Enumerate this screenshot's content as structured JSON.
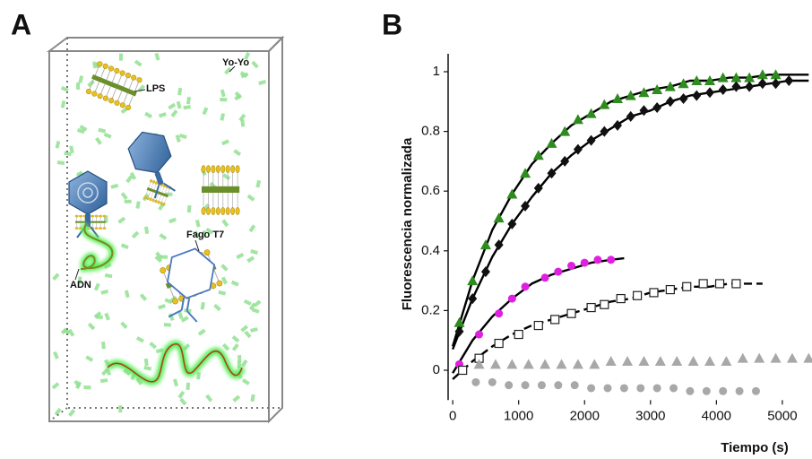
{
  "illustration": {
    "label": "A",
    "labels": [
      "Yo-Yo",
      "LPS",
      "Fago T7",
      "ADN"
    ]
  },
  "chart_data": {
    "type": "scatter",
    "panel_label": "B",
    "xlabel": "Tiempo (s)",
    "ylabel": "Fluorescencia normalizada",
    "xlim": [
      -70,
      5450
    ],
    "ylim": [
      -0.1,
      1.06
    ],
    "xticks": [
      0,
      1000,
      2000,
      3000,
      4000,
      5000
    ],
    "yticks": [
      0,
      0.2,
      0.4,
      0.6,
      0.8,
      1
    ],
    "series": [
      {
        "style": "line",
        "color": "#000000",
        "x": [
          0,
          300,
          600,
          900,
          1200,
          1500,
          1800,
          2100,
          2400,
          2700,
          3000,
          3300,
          3600,
          3900,
          4200,
          4500,
          4800,
          5100,
          5400
        ],
        "values": [
          0.08,
          0.3,
          0.47,
          0.59,
          0.69,
          0.76,
          0.82,
          0.86,
          0.9,
          0.92,
          0.94,
          0.95,
          0.97,
          0.97,
          0.98,
          0.98,
          0.99,
          0.99,
          0.99
        ]
      },
      {
        "style": "line",
        "color": "#000000",
        "x": [
          0,
          300,
          600,
          900,
          1200,
          1500,
          1800,
          2100,
          2400,
          2700,
          3000,
          3300,
          3600,
          3900,
          4200,
          4500,
          4800,
          5100,
          5400
        ],
        "values": [
          0.07,
          0.24,
          0.38,
          0.49,
          0.58,
          0.66,
          0.72,
          0.77,
          0.81,
          0.85,
          0.87,
          0.9,
          0.92,
          0.93,
          0.94,
          0.95,
          0.96,
          0.97,
          0.97
        ]
      },
      {
        "style": "line",
        "color": "#000000",
        "x": [
          0,
          300,
          600,
          900,
          1200,
          1500,
          1800,
          2100,
          2400,
          2600
        ],
        "values": [
          -0.01,
          0.1,
          0.18,
          0.24,
          0.29,
          0.32,
          0.34,
          0.36,
          0.37,
          0.375
        ]
      },
      {
        "style": "dashed",
        "color": "#000000",
        "x": [
          0,
          300,
          600,
          900,
          1200,
          1500,
          1800,
          2100,
          2400,
          2700,
          3000,
          3300,
          3600,
          3900,
          4200,
          4500,
          4700
        ],
        "values": [
          -0.03,
          0.03,
          0.08,
          0.12,
          0.15,
          0.17,
          0.19,
          0.21,
          0.23,
          0.24,
          0.26,
          0.27,
          0.28,
          0.28,
          0.29,
          0.29,
          0.29
        ]
      },
      {
        "marker": "triangle",
        "color": "#2e8b1e",
        "x": [
          100,
          300,
          500,
          700,
          900,
          1100,
          1300,
          1500,
          1700,
          1900,
          2100,
          2300,
          2500,
          2700,
          2900,
          3100,
          3300,
          3500,
          3700,
          3900,
          4100,
          4300,
          4500,
          4700,
          4900
        ],
        "values": [
          0.16,
          0.3,
          0.42,
          0.51,
          0.59,
          0.66,
          0.72,
          0.76,
          0.8,
          0.84,
          0.86,
          0.89,
          0.91,
          0.92,
          0.93,
          0.94,
          0.95,
          0.96,
          0.97,
          0.97,
          0.98,
          0.98,
          0.98,
          0.99,
          0.99
        ]
      },
      {
        "marker": "diamond",
        "color": "#111111",
        "x": [
          100,
          300,
          500,
          700,
          900,
          1100,
          1300,
          1500,
          1700,
          1900,
          2100,
          2300,
          2500,
          2700,
          2900,
          3100,
          3300,
          3500,
          3700,
          3900,
          4100,
          4300,
          4500,
          4700,
          4900,
          5100
        ],
        "values": [
          0.13,
          0.24,
          0.33,
          0.42,
          0.49,
          0.55,
          0.61,
          0.66,
          0.7,
          0.74,
          0.77,
          0.8,
          0.82,
          0.85,
          0.87,
          0.88,
          0.9,
          0.91,
          0.92,
          0.93,
          0.94,
          0.95,
          0.95,
          0.96,
          0.96,
          0.97
        ]
      },
      {
        "marker": "circle",
        "color": "#e020e0",
        "x": [
          100,
          400,
          700,
          900,
          1100,
          1400,
          1600,
          1800,
          2000,
          2200,
          2400
        ],
        "values": [
          0.02,
          0.12,
          0.19,
          0.24,
          0.28,
          0.31,
          0.33,
          0.35,
          0.36,
          0.37,
          0.37
        ]
      },
      {
        "marker": "square-open",
        "color": "#ffffff",
        "x": [
          150,
          400,
          700,
          1000,
          1300,
          1550,
          1800,
          2100,
          2300,
          2550,
          2800,
          3050,
          3300,
          3550,
          3800,
          4050,
          4300
        ],
        "values": [
          0.0,
          0.04,
          0.09,
          0.12,
          0.15,
          0.17,
          0.19,
          0.21,
          0.22,
          0.24,
          0.25,
          0.26,
          0.27,
          0.28,
          0.29,
          0.29,
          0.29
        ]
      },
      {
        "marker": "triangle",
        "color": "#a8a8a8",
        "x": [
          400,
          650,
          900,
          1150,
          1400,
          1650,
          1900,
          2150,
          2400,
          2650,
          2900,
          3150,
          3400,
          3650,
          3900,
          4150,
          4400,
          4650,
          4900,
          5150,
          5400
        ],
        "values": [
          0.02,
          0.02,
          0.02,
          0.02,
          0.02,
          0.02,
          0.02,
          0.02,
          0.03,
          0.03,
          0.03,
          0.03,
          0.03,
          0.03,
          0.03,
          0.03,
          0.04,
          0.04,
          0.04,
          0.04,
          0.04
        ]
      },
      {
        "marker": "circle",
        "color": "#a8a8a8",
        "x": [
          350,
          600,
          850,
          1100,
          1350,
          1600,
          1850,
          2100,
          2350,
          2600,
          2850,
          3100,
          3350,
          3600,
          3850,
          4100,
          4350,
          4600
        ],
        "values": [
          -0.04,
          -0.04,
          -0.05,
          -0.05,
          -0.05,
          -0.05,
          -0.05,
          -0.06,
          -0.06,
          -0.06,
          -0.06,
          -0.06,
          -0.06,
          -0.07,
          -0.07,
          -0.07,
          -0.07,
          -0.07
        ]
      }
    ]
  }
}
